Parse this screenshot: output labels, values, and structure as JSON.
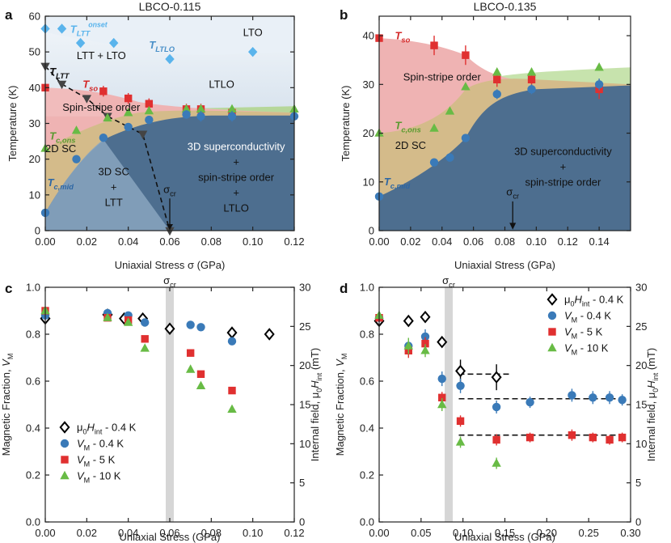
{
  "chart_data": [
    {
      "panel": "a",
      "type": "scatter",
      "title": "LBCO-0.115",
      "xlabel": "Uniaxial Stress σ (GPa)",
      "ylabel": "Temperature (K)",
      "xlim": [
        0,
        0.12
      ],
      "ylim": [
        0,
        60
      ],
      "xticks": [
        "0.00",
        "0.02",
        "0.04",
        "0.06",
        "0.08",
        "0.10",
        "0.12"
      ],
      "yticks": [
        "0",
        "10",
        "20",
        "30",
        "40",
        "50",
        "60"
      ],
      "colors": {
        "lto": "#e9f0f7",
        "ltlo": "#c9d9e8",
        "spin": "#efb3b3",
        "sc2d": "#d4bb8a",
        "sc3d": "#4d6e8f",
        "ltt": "#8aa6bf",
        "green_band": "#b6d79a"
      },
      "regions": [
        {
          "key": "lto",
          "label": "LTO"
        },
        {
          "key": "ltt_lto",
          "label": "LTT + LTO"
        },
        {
          "key": "ltlo",
          "label": "LTLO"
        },
        {
          "key": "spin",
          "label": "Spin-stripe order"
        },
        {
          "key": "sc2d",
          "label": "2D SC"
        },
        {
          "key": "sc3d_ltt",
          "lines": [
            "3D SC",
            "+",
            "LTT"
          ]
        },
        {
          "key": "sc3d_ltlo",
          "lines": [
            "3D superconductivity",
            "+",
            "spin-stripe order",
            "+",
            "LTLO"
          ]
        }
      ],
      "annotations": {
        "T_LTT_onset": {
          "base": "T",
          "sub": "LTT",
          "sup": "onset"
        },
        "T_LTLO": {
          "base": "T",
          "sub": "LTLO"
        },
        "T_LTT": {
          "base": "T",
          "sub": "LTT"
        },
        "T_so": {
          "base": "T",
          "sub": "so"
        },
        "T_c_ons": {
          "base": "T",
          "sub": "c,ons"
        },
        "T_c_mid": {
          "base": "T",
          "sub": "c,mid"
        },
        "sigma_cr": {
          "base": "σ",
          "sub": "cr"
        }
      },
      "series": [
        {
          "name": "T_LTT_onset",
          "color": "#5ab4ec",
          "marker": "diamond",
          "x": [
            0.0,
            0.008,
            0.017,
            0.033
          ],
          "y": [
            56.5,
            56.5,
            52.5,
            52.5
          ]
        },
        {
          "name": "T_LTLO",
          "color": "#5ab4ec",
          "marker": "diamond",
          "x": [
            0.06,
            0.1
          ],
          "y": [
            48,
            50
          ]
        },
        {
          "name": "T_LTT",
          "color": "#444444",
          "marker": "triangle-down",
          "x": [
            0.0,
            0.008,
            0.02,
            0.03,
            0.047,
            0.06
          ],
          "y": [
            46,
            41,
            37,
            32,
            27,
            0
          ]
        },
        {
          "name": "T_so",
          "color": "#e03030",
          "marker": "square",
          "x": [
            0.0,
            0.028,
            0.04,
            0.05,
            0.068,
            0.075,
            0.09
          ],
          "y": [
            40,
            39,
            37,
            35.5,
            34,
            34,
            33
          ]
        },
        {
          "name": "T_c_ons",
          "color": "#68bb45",
          "marker": "triangle-up",
          "x": [
            0.0,
            0.015,
            0.03,
            0.04,
            0.05,
            0.068,
            0.075,
            0.09,
            0.12
          ],
          "y": [
            23,
            28,
            31.5,
            33,
            33.5,
            34,
            34,
            34,
            34
          ]
        },
        {
          "name": "T_c_mid",
          "color": "#3a7ab8",
          "marker": "circle",
          "x": [
            0.0,
            0.015,
            0.028,
            0.04,
            0.05,
            0.068,
            0.075,
            0.09,
            0.12
          ],
          "y": [
            5,
            20,
            26,
            29,
            31,
            32.5,
            32,
            32,
            32
          ]
        }
      ]
    },
    {
      "panel": "b",
      "type": "scatter",
      "title": "LBCO-0.135",
      "xlabel": "Uniaxial Stress (GPa)",
      "ylabel": "Temperature (K)",
      "xlim": [
        0,
        0.16
      ],
      "ylim": [
        0,
        44
      ],
      "xticks": [
        "0.00",
        "0.02",
        "0.04",
        "0.06",
        "0.08",
        "0.10",
        "0.12",
        "0.14"
      ],
      "yticks": [
        "0",
        "10",
        "20",
        "30",
        "40"
      ],
      "regions": [
        {
          "key": "spin",
          "label": "Spin-stripe order"
        },
        {
          "key": "sc2d",
          "label": "2D SC"
        },
        {
          "key": "sc3d",
          "lines": [
            "3D superconductivity",
            "+",
            "spin-stripe order"
          ]
        }
      ],
      "annotations": {
        "T_so": {
          "base": "T",
          "sub": "so"
        },
        "T_c_ons": {
          "base": "T",
          "sub": "c,ons"
        },
        "T_c_mid": {
          "base": "T",
          "sub": "c,mid"
        },
        "sigma_cr": {
          "base": "σ",
          "sub": "cr"
        }
      },
      "series": [
        {
          "name": "T_so",
          "color": "#e03030",
          "marker": "square",
          "x": [
            0.0,
            0.035,
            0.055,
            0.075,
            0.097,
            0.14
          ],
          "y": [
            39.5,
            38,
            36,
            31,
            31,
            29
          ]
        },
        {
          "name": "T_c_ons",
          "color": "#68bb45",
          "marker": "triangle-up",
          "x": [
            0.0,
            0.035,
            0.045,
            0.055,
            0.075,
            0.097,
            0.14
          ],
          "y": [
            20,
            21,
            24.5,
            29.5,
            32.5,
            32.5,
            33.5
          ]
        },
        {
          "name": "T_c_mid",
          "color": "#3a7ab8",
          "marker": "circle",
          "x": [
            0.0,
            0.035,
            0.045,
            0.055,
            0.075,
            0.097,
            0.14
          ],
          "y": [
            7,
            14,
            15,
            19,
            28,
            29,
            30
          ]
        }
      ]
    },
    {
      "panel": "c",
      "type": "scatter",
      "xlabel": "Uniaxial Stress (GPa)",
      "ylabel": "Magnetic Fraction, V_M",
      "y2label": "Internal field, μ0H_int (mT)",
      "xlim": [
        0,
        0.12
      ],
      "ylim": [
        0,
        1.0
      ],
      "y2lim": [
        0,
        30
      ],
      "xticks": [
        "0.00",
        "0.02",
        "0.04",
        "0.06",
        "0.08",
        "0.10",
        "0.12"
      ],
      "yticks": [
        "0.0",
        "0.2",
        "0.4",
        "0.6",
        "0.8",
        "1.0"
      ],
      "y2ticks": [
        "0",
        "5",
        "10",
        "15",
        "20",
        "25",
        "30"
      ],
      "sigma_cr": 0.06,
      "sigma_cr_label": {
        "base": "σ",
        "sub": "cr"
      },
      "legend": [
        {
          "text_parts": [
            "μ",
            "0",
            "H",
            "int",
            " - 0.4 K"
          ],
          "marker": "open-diamond",
          "color": "#000000"
        },
        {
          "text_parts": [
            "V",
            "M",
            " - 0.4 K"
          ],
          "marker": "circle",
          "color": "#3a7ab8"
        },
        {
          "text_parts": [
            "V",
            "M",
            " - 5 K"
          ],
          "marker": "square",
          "color": "#e03030"
        },
        {
          "text_parts": [
            "V",
            "M",
            " - 10 K"
          ],
          "marker": "triangle-up",
          "color": "#68bb45"
        }
      ],
      "series": [
        {
          "name": "μ0Hint - 0.4 K",
          "axis": "right",
          "marker": "open-diamond",
          "color": "#000000",
          "x": [
            0.0,
            0.03,
            0.038,
            0.047,
            0.06,
            0.09,
            0.108
          ],
          "y": [
            26,
            26.5,
            26,
            26,
            24.7,
            24.2,
            24
          ]
        },
        {
          "name": "VM - 0.4 K",
          "axis": "left",
          "marker": "circle",
          "color": "#3a7ab8",
          "x": [
            0.0,
            0.03,
            0.04,
            0.048,
            0.07,
            0.075,
            0.09
          ],
          "y": [
            0.88,
            0.89,
            0.88,
            0.85,
            0.84,
            0.83,
            0.77
          ]
        },
        {
          "name": "VM - 5 K",
          "axis": "left",
          "marker": "square",
          "color": "#e03030",
          "x": [
            0.0,
            0.03,
            0.04,
            0.048,
            0.07,
            0.075,
            0.09
          ],
          "y": [
            0.9,
            0.87,
            0.86,
            0.78,
            0.72,
            0.63,
            0.56
          ]
        },
        {
          "name": "VM - 10 K",
          "axis": "left",
          "marker": "triangle-up",
          "color": "#68bb45",
          "x": [
            0.0,
            0.03,
            0.04,
            0.048,
            0.07,
            0.075,
            0.09
          ],
          "y": [
            0.9,
            0.87,
            0.85,
            0.74,
            0.65,
            0.58,
            0.48
          ]
        }
      ]
    },
    {
      "panel": "d",
      "type": "scatter",
      "xlabel": "Uniaxial Stress (GPa)",
      "ylabel": "Magnetic Fraction, V_M",
      "y2label": "Internal field, μ0H_int (mT)",
      "xlim": [
        0,
        0.3
      ],
      "ylim": [
        0,
        1.0
      ],
      "y2lim": [
        0,
        30
      ],
      "xticks": [
        "0.00",
        "0.05",
        "0.10",
        "0.15",
        "0.20",
        "0.25",
        "0.30"
      ],
      "yticks": [
        "0.0",
        "0.2",
        "0.4",
        "0.6",
        "0.8",
        "1.0"
      ],
      "y2ticks": [
        "0",
        "5",
        "10",
        "15",
        "20",
        "25",
        "30"
      ],
      "sigma_cr": 0.083,
      "sigma_cr_label": {
        "base": "σ",
        "sub": "cr"
      },
      "plateaus": [
        {
          "x": [
            0.095,
            0.158
          ],
          "y": 0.63
        },
        {
          "x": [
            0.095,
            0.29
          ],
          "y": 0.525
        },
        {
          "x": [
            0.095,
            0.29
          ],
          "y": 0.37
        }
      ],
      "legend": [
        {
          "text_parts": [
            "μ",
            "0",
            "H",
            "int",
            " - 0.4 K"
          ],
          "marker": "open-diamond",
          "color": "#000000"
        },
        {
          "text_parts": [
            "V",
            "M",
            " - 0.4 K"
          ],
          "marker": "circle",
          "color": "#3a7ab8"
        },
        {
          "text_parts": [
            "V",
            "M",
            " - 5 K"
          ],
          "marker": "square",
          "color": "#e03030"
        },
        {
          "text_parts": [
            "V",
            "M",
            " - 10 K"
          ],
          "marker": "triangle-up",
          "color": "#68bb45"
        }
      ],
      "series": [
        {
          "name": "μ0Hint - 0.4 K",
          "axis": "right",
          "marker": "open-diamond",
          "color": "#000000",
          "x": [
            0.0,
            0.035,
            0.055,
            0.075,
            0.097,
            0.14
          ],
          "y": [
            25.7,
            25.7,
            26.2,
            23,
            19.3,
            18.5
          ]
        },
        {
          "name": "VM - 0.4 K",
          "axis": "left",
          "marker": "circle",
          "color": "#3a7ab8",
          "x": [
            0.0,
            0.035,
            0.055,
            0.075,
            0.097,
            0.14,
            0.18,
            0.23,
            0.255,
            0.275,
            0.29
          ],
          "y": [
            0.87,
            0.75,
            0.79,
            0.61,
            0.58,
            0.49,
            0.51,
            0.54,
            0.53,
            0.53,
            0.52
          ]
        },
        {
          "name": "VM - 5 K",
          "axis": "left",
          "marker": "square",
          "color": "#e03030",
          "x": [
            0.0,
            0.035,
            0.055,
            0.075,
            0.097,
            0.14,
            0.18,
            0.23,
            0.255,
            0.275,
            0.29
          ],
          "y": [
            0.87,
            0.73,
            0.76,
            0.53,
            0.43,
            0.35,
            0.36,
            0.37,
            0.36,
            0.35,
            0.36
          ]
        },
        {
          "name": "VM - 10 K",
          "axis": "left",
          "marker": "triangle-up",
          "color": "#68bb45",
          "x": [
            0.0,
            0.035,
            0.055,
            0.075,
            0.097,
            0.14
          ],
          "y": [
            0.88,
            0.75,
            0.73,
            0.5,
            0.34,
            0.25
          ]
        }
      ]
    }
  ]
}
